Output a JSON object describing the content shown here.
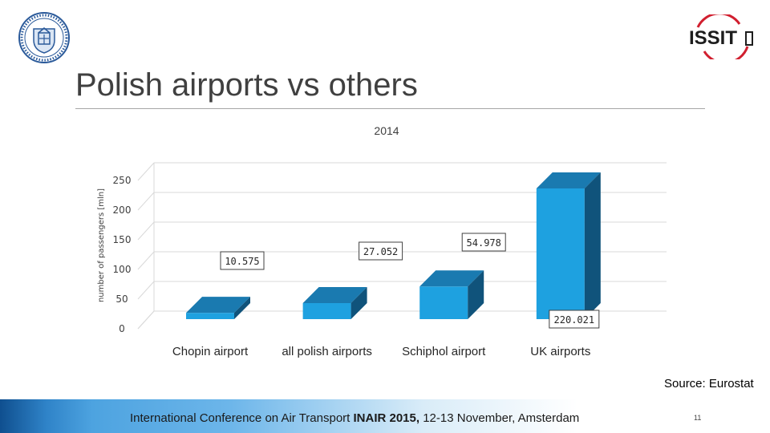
{
  "slide": {
    "title": "Polish airports vs others",
    "source": "Source: Eurostat",
    "footer": {
      "text_before": "International Conference on Air Transport ",
      "text_bold": "INAIR 2015,",
      "text_after": " 12-13 November, Amsterdam"
    },
    "page_number": "11",
    "logo_right_text": "ISSIT"
  },
  "colors": {
    "bar_front": "#1ea1e0",
    "bar_top": "#1a7ab0",
    "bar_side": "#10537b",
    "grid": "#d9d9d9",
    "text": "#404040"
  },
  "chart_data": {
    "type": "bar",
    "style": "3d-column",
    "title": "2014",
    "ylabel": "number of passengers [mln]",
    "xlabel": "",
    "ylim": [
      0,
      250
    ],
    "yticks": [
      "0",
      "50",
      "100",
      "150",
      "200",
      "250"
    ],
    "categories": [
      "Chopin airport",
      "all polish airports",
      "Schiphol airport",
      "UK airports"
    ],
    "values": [
      10.575,
      27.052,
      54.978,
      220.021
    ],
    "data_labels": [
      "10.575",
      "27.052",
      "54.978",
      "220.021"
    ],
    "grid": true,
    "legend": "none"
  }
}
